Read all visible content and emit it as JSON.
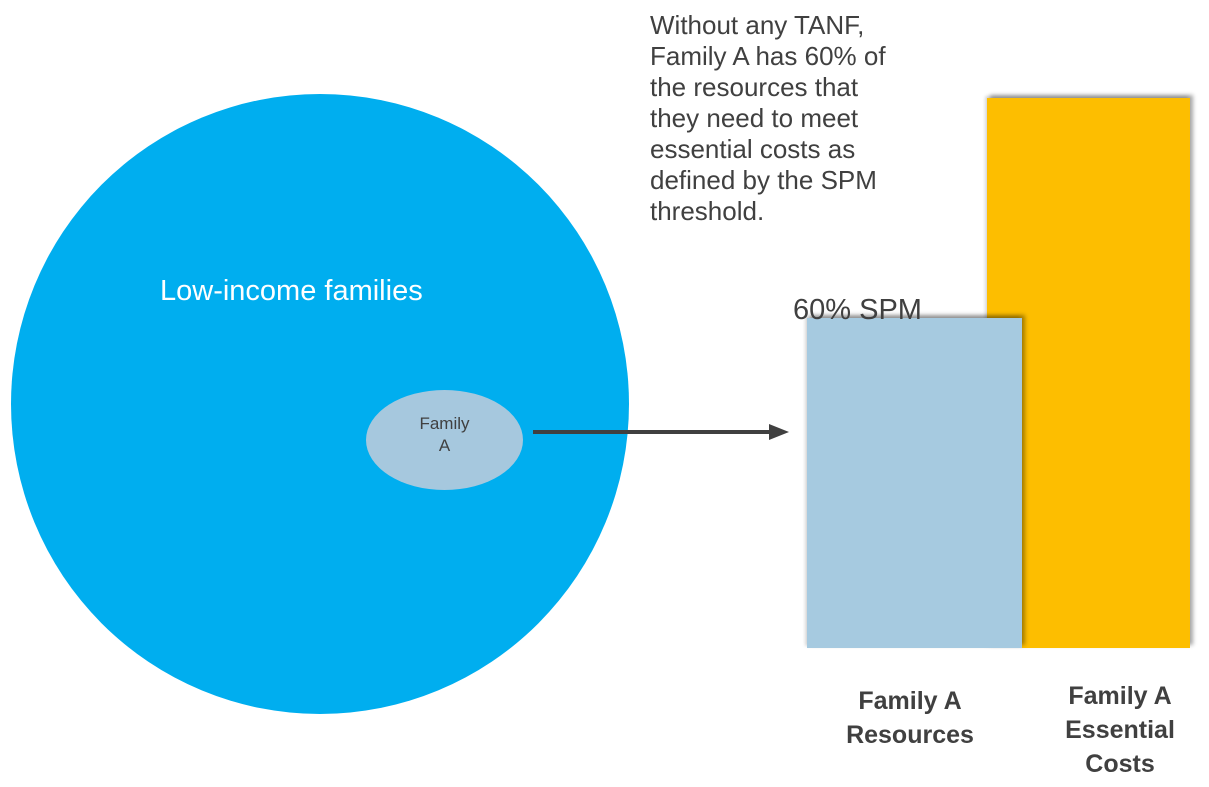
{
  "colors": {
    "circle": "#00aeef",
    "ellipse": "#a6c8de",
    "arrow": "#404040",
    "resources_bar": "#a6cae0",
    "costs_bar": "#fdbe00",
    "text_dark": "#404040",
    "text_light": "#ffffff"
  },
  "diagram": {
    "population_label": "Low-income families",
    "family_line1": "Family",
    "family_line2": "A",
    "description_lines": [
      "Without any TANF,",
      "Family A has 60% of",
      "the resources that",
      "they need to meet",
      "essential costs as",
      "defined by the SPM",
      "threshold."
    ]
  },
  "chart_data": {
    "type": "bar",
    "categories": [
      "Family A Resources",
      "Family A Essential Costs"
    ],
    "category_lines": [
      [
        "Family A",
        "Resources"
      ],
      [
        "Family A",
        "Essential",
        "Costs"
      ]
    ],
    "values": [
      60,
      100
    ],
    "unit": "% of SPM threshold",
    "data_labels": [
      "60% SPM",
      ""
    ],
    "ylim": [
      0,
      100
    ],
    "grid": false,
    "legend": "none"
  }
}
